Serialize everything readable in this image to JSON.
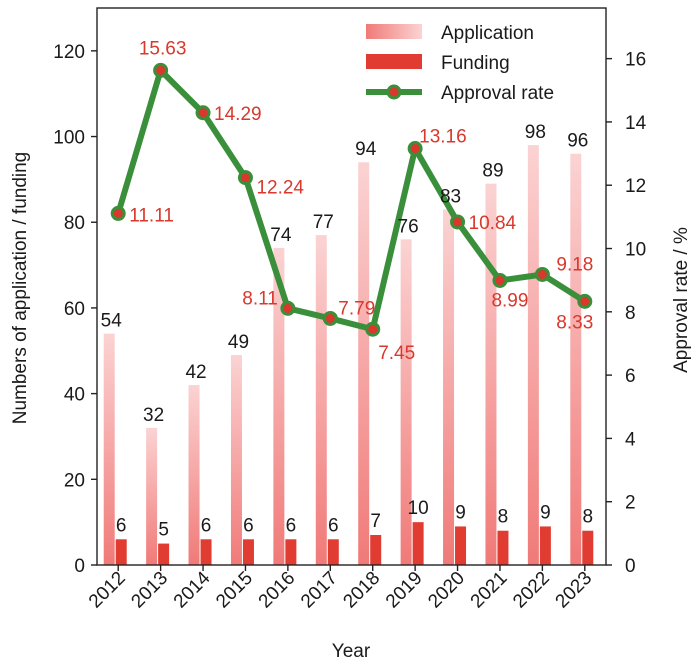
{
  "chart_data": {
    "type": "bar",
    "categories": [
      "2012",
      "2013",
      "2014",
      "2015",
      "2016",
      "2017",
      "2018",
      "2019",
      "2020",
      "2021",
      "2022",
      "2023"
    ],
    "series": [
      {
        "name": "Application",
        "type": "bar",
        "axis": "left",
        "values": [
          54,
          32,
          42,
          49,
          74,
          77,
          94,
          76,
          83,
          89,
          98,
          96
        ]
      },
      {
        "name": "Funding",
        "type": "bar",
        "axis": "left",
        "values": [
          6,
          5,
          6,
          6,
          6,
          6,
          7,
          10,
          9,
          8,
          9,
          8
        ]
      },
      {
        "name": "Approval rate",
        "type": "line",
        "axis": "right",
        "values": [
          11.11,
          15.63,
          14.29,
          12.24,
          8.11,
          7.79,
          7.45,
          13.16,
          10.84,
          8.99,
          9.18,
          8.33
        ]
      }
    ],
    "xlabel": "Year",
    "ylabel": "Numbers of application / funding",
    "y2label": "Approval rate / %",
    "ylim": [
      0,
      130
    ],
    "y2lim": [
      0,
      17.6
    ],
    "yticks": [
      0,
      20,
      40,
      60,
      80,
      100,
      120
    ],
    "y2ticks": [
      0,
      2,
      4,
      6,
      8,
      10,
      12,
      14,
      16
    ],
    "legend_position": "top-right",
    "grid": false,
    "colors": {
      "application": "#f08080",
      "funding": "#e03c31",
      "line": "#3a8f3a",
      "marker_fill": "#d9382c",
      "rate_labels": "#d9382c",
      "text": "#1a1a1a"
    }
  }
}
